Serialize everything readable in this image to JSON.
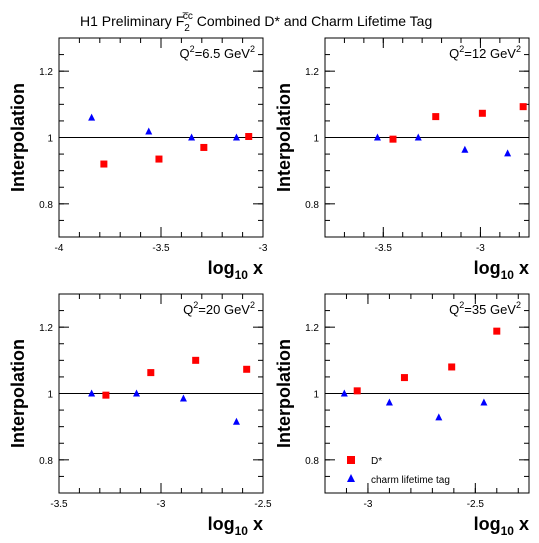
{
  "figure": {
    "title_prefix": "H1 Preliminary F",
    "title_sub": "2",
    "title_sup": "c̅c",
    "title_suffix": " Combined D* and Charm Lifetime Tag"
  },
  "colors": {
    "dstar": "#ff0000",
    "lifetime": "#0000ff",
    "axis": "#000000"
  },
  "chart_data": [
    {
      "type": "scatter",
      "annotation": {
        "prefix": "Q",
        "sup": "2",
        "mid": "=6.5 GeV",
        "sup2": "2"
      },
      "xlabel": {
        "main": "log",
        "sub": "10",
        "tail": " x"
      },
      "ylabel": "Interpolation",
      "xlim": [
        -4,
        -3
      ],
      "ylim": [
        0.7,
        1.3
      ],
      "xticks": [
        {
          "v": -4,
          "label": "-4"
        },
        {
          "v": -3.5,
          "label": "-3.5"
        },
        {
          "v": -3,
          "label": "-3"
        }
      ],
      "yticks": [
        {
          "v": 0.8,
          "label": "0.8"
        },
        {
          "v": 1,
          "label": "1"
        },
        {
          "v": 1.2,
          "label": "1.2"
        }
      ],
      "reference_line": 1,
      "series": [
        {
          "name": "D*",
          "marker": "square",
          "x": [
            -3.78,
            -3.51,
            -3.29,
            -3.07
          ],
          "y": [
            0.92,
            0.935,
            0.97,
            1.003
          ]
        },
        {
          "name": "charm lifetime tag",
          "marker": "triangle",
          "x": [
            -3.84,
            -3.56,
            -3.35,
            -3.13
          ],
          "y": [
            1.06,
            1.018,
            1.0,
            1.0
          ]
        }
      ]
    },
    {
      "type": "scatter",
      "annotation": {
        "prefix": "Q",
        "sup": "2",
        "mid": "=12 GeV",
        "sup2": "2"
      },
      "xlabel": {
        "main": "log",
        "sub": "10",
        "tail": " x"
      },
      "ylabel": "Interpolation",
      "xlim": [
        -3.8,
        -2.75
      ],
      "ylim": [
        0.7,
        1.3
      ],
      "xticks": [
        {
          "v": -3.5,
          "label": "-3.5"
        },
        {
          "v": -3,
          "label": "-3"
        }
      ],
      "yticks": [
        {
          "v": 0.8,
          "label": "0.8"
        },
        {
          "v": 1,
          "label": "1"
        },
        {
          "v": 1.2,
          "label": "1.2"
        }
      ],
      "reference_line": 1,
      "series": [
        {
          "name": "D*",
          "marker": "square",
          "x": [
            -3.45,
            -3.23,
            -2.99,
            -2.78
          ],
          "y": [
            0.995,
            1.063,
            1.073,
            1.093
          ]
        },
        {
          "name": "charm lifetime tag",
          "marker": "triangle",
          "x": [
            -3.53,
            -3.32,
            -3.08,
            -2.86
          ],
          "y": [
            1.0,
            1.0,
            0.963,
            0.952
          ]
        }
      ]
    },
    {
      "type": "scatter",
      "annotation": {
        "prefix": "Q",
        "sup": "2",
        "mid": "=20 GeV",
        "sup2": "2"
      },
      "xlabel": {
        "main": "log",
        "sub": "10",
        "tail": " x"
      },
      "ylabel": "Interpolation",
      "xlim": [
        -3.5,
        -2.5
      ],
      "ylim": [
        0.7,
        1.3
      ],
      "xticks": [
        {
          "v": -3.5,
          "label": "-3.5"
        },
        {
          "v": -3,
          "label": "-3"
        },
        {
          "v": -2.5,
          "label": "-2.5"
        }
      ],
      "yticks": [
        {
          "v": 0.8,
          "label": "0.8"
        },
        {
          "v": 1,
          "label": "1"
        },
        {
          "v": 1.2,
          "label": "1.2"
        }
      ],
      "reference_line": 1,
      "series": [
        {
          "name": "D*",
          "marker": "square",
          "x": [
            -3.27,
            -3.05,
            -2.83,
            -2.58
          ],
          "y": [
            0.995,
            1.063,
            1.1,
            1.073
          ]
        },
        {
          "name": "charm lifetime tag",
          "marker": "triangle",
          "x": [
            -3.34,
            -3.12,
            -2.89,
            -2.63
          ],
          "y": [
            1.0,
            1.0,
            0.985,
            0.915
          ]
        }
      ]
    },
    {
      "type": "scatter",
      "annotation": {
        "prefix": "Q",
        "sup": "2",
        "mid": "=35 GeV",
        "sup2": "2"
      },
      "xlabel": {
        "main": "log",
        "sub": "10",
        "tail": " x"
      },
      "ylabel": "Interpolation",
      "xlim": [
        -3.2,
        -2.25
      ],
      "ylim": [
        0.7,
        1.3
      ],
      "xticks": [
        {
          "v": -3,
          "label": "-3"
        },
        {
          "v": -2.5,
          "label": "-2.5"
        }
      ],
      "yticks": [
        {
          "v": 0.8,
          "label": "0.8"
        },
        {
          "v": 1,
          "label": "1"
        },
        {
          "v": 1.2,
          "label": "1.2"
        }
      ],
      "reference_line": 1,
      "legend": {
        "placement": "bottom-left",
        "entries": [
          "D*",
          "charm lifetime tag"
        ]
      },
      "series": [
        {
          "name": "D*",
          "marker": "square",
          "x": [
            -3.05,
            -2.83,
            -2.61,
            -2.4
          ],
          "y": [
            1.008,
            1.048,
            1.08,
            1.188
          ]
        },
        {
          "name": "charm lifetime tag",
          "marker": "triangle",
          "x": [
            -3.11,
            -2.9,
            -2.67,
            -2.46
          ],
          "y": [
            1.0,
            0.973,
            0.928,
            0.973
          ]
        }
      ]
    }
  ]
}
